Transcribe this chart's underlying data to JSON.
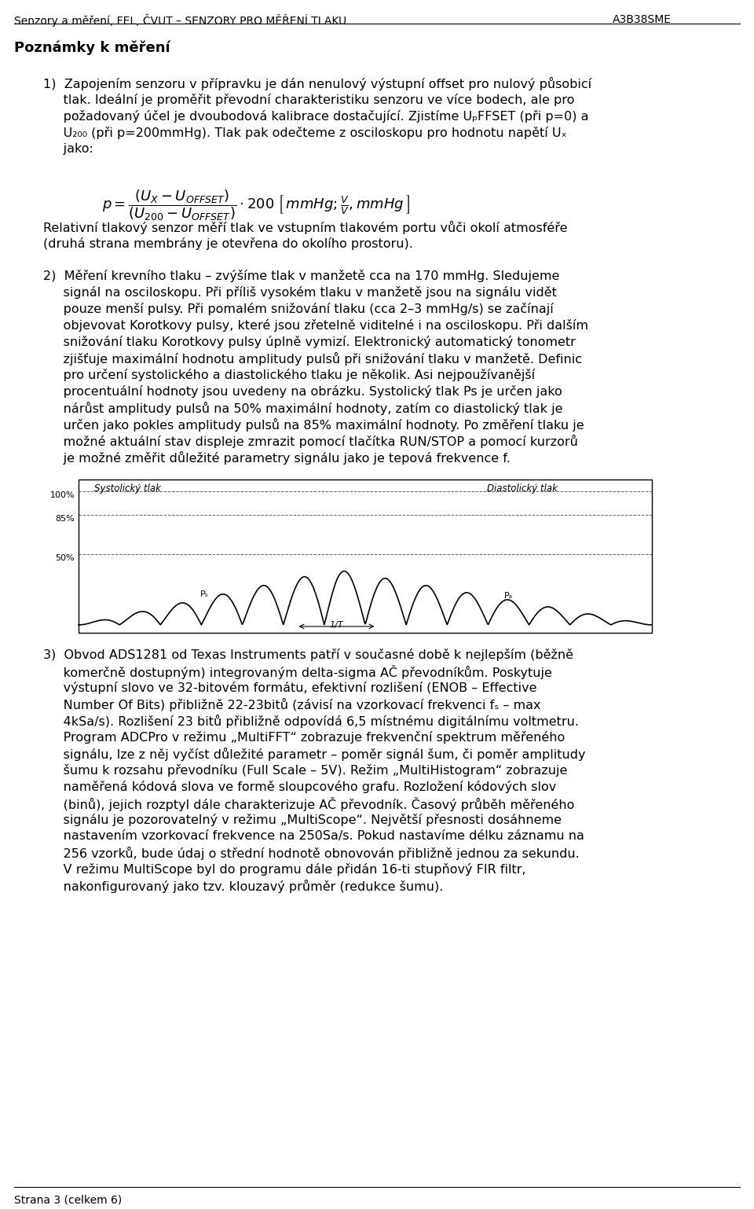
{
  "header_left": "Senzory a měření, FEL, ČVUT – SENZORY PRO MĚŘENÍ TLAKU",
  "header_right": "A3B38SME",
  "section_title": "Poznámky k měření",
  "bg_color": "#ffffff",
  "text_color": "#000000",
  "footer": "Strana 3 (celkem 6)"
}
